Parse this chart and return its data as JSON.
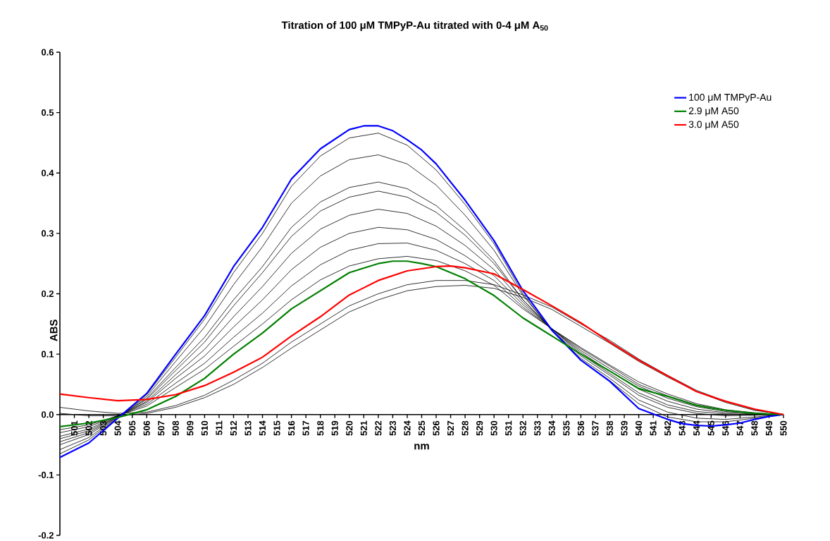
{
  "chart_data": {
    "type": "line",
    "title": "Titration of 100 μM TMPyP-Au titrated with 0-4 μM A$_{50}$",
    "xlabel": "nm",
    "ylabel": "ABS",
    "xlim": [
      500,
      550
    ],
    "xticks": [
      501,
      502,
      503,
      504,
      505,
      506,
      507,
      508,
      509,
      510,
      511,
      512,
      513,
      514,
      515,
      516,
      517,
      518,
      519,
      520,
      521,
      522,
      523,
      524,
      525,
      526,
      527,
      528,
      529,
      530,
      531,
      532,
      533,
      534,
      535,
      536,
      537,
      538,
      539,
      540,
      541,
      542,
      543,
      544,
      545,
      546,
      547,
      548,
      549,
      550
    ],
    "ylim": [
      -0.2,
      0.6
    ],
    "yticks": [
      {
        "value": -0.2,
        "label": "-0.2"
      },
      {
        "value": -0.1,
        "label": "-0.1"
      },
      {
        "value": 0,
        "label": "0.0"
      },
      {
        "value": 0.1,
        "label": "0.1"
      },
      {
        "value": 0.2,
        "label": "0.2"
      },
      {
        "value": 0.3,
        "label": "0.3"
      },
      {
        "value": 0.4,
        "label": "0.4"
      },
      {
        "value": 0.5,
        "label": "0.5"
      },
      {
        "value": 0.6,
        "label": "0.6"
      }
    ],
    "legend": "top right",
    "x": [
      500,
      502,
      504,
      506,
      508,
      510,
      512,
      514,
      516,
      518,
      520,
      522,
      524,
      526,
      528,
      530,
      532,
      534,
      536,
      538,
      540,
      542,
      544,
      546,
      548,
      550
    ],
    "series": [
      {
        "color": "#000000",
        "values": [
          -0.065,
          -0.042,
          -0.005,
          0.033,
          0.095,
          0.158,
          0.235,
          0.3,
          0.378,
          0.428,
          0.458,
          0.466,
          0.446,
          0.405,
          0.348,
          0.283,
          0.2,
          0.138,
          0.09,
          0.056,
          0.018,
          -0.004,
          -0.012,
          -0.012,
          -0.006,
          0
        ]
      },
      {
        "color": "#000000",
        "values": [
          -0.058,
          -0.038,
          -0.004,
          0.03,
          0.088,
          0.145,
          0.215,
          0.278,
          0.35,
          0.395,
          0.422,
          0.43,
          0.415,
          0.38,
          0.33,
          0.272,
          0.197,
          0.14,
          0.093,
          0.06,
          0.024,
          0.004,
          -0.006,
          -0.008,
          -0.004,
          0
        ]
      },
      {
        "color": "#000000",
        "values": [
          -0.05,
          -0.033,
          -0.004,
          0.027,
          0.078,
          0.128,
          0.19,
          0.245,
          0.31,
          0.352,
          0.376,
          0.385,
          0.374,
          0.346,
          0.305,
          0.255,
          0.19,
          0.14,
          0.097,
          0.065,
          0.032,
          0.012,
          0.002,
          -0.002,
          -0.001,
          0
        ]
      },
      {
        "color": "#000000",
        "values": [
          -0.045,
          -0.03,
          -0.003,
          0.025,
          0.073,
          0.12,
          0.18,
          0.235,
          0.295,
          0.337,
          0.36,
          0.37,
          0.36,
          0.335,
          0.297,
          0.25,
          0.19,
          0.142,
          0.1,
          0.068,
          0.036,
          0.016,
          0.005,
          0.001,
          0,
          0
        ]
      },
      {
        "color": "#000000",
        "values": [
          -0.04,
          -0.027,
          -0.003,
          0.022,
          0.066,
          0.108,
          0.162,
          0.212,
          0.267,
          0.307,
          0.33,
          0.34,
          0.333,
          0.312,
          0.28,
          0.24,
          0.186,
          0.142,
          0.103,
          0.072,
          0.042,
          0.022,
          0.009,
          0.003,
          0.001,
          0
        ]
      },
      {
        "color": "#000000",
        "values": [
          -0.036,
          -0.024,
          -0.002,
          0.02,
          0.06,
          0.097,
          0.145,
          0.19,
          0.24,
          0.277,
          0.3,
          0.31,
          0.306,
          0.29,
          0.263,
          0.23,
          0.182,
          0.142,
          0.106,
          0.076,
          0.047,
          0.027,
          0.013,
          0.005,
          0.002,
          0
        ]
      },
      {
        "color": "#000000",
        "values": [
          -0.03,
          -0.02,
          -0.002,
          0.017,
          0.052,
          0.085,
          0.128,
          0.168,
          0.213,
          0.248,
          0.272,
          0.283,
          0.284,
          0.272,
          0.25,
          0.222,
          0.178,
          0.142,
          0.109,
          0.08,
          0.05,
          0.031,
          0.016,
          0.007,
          0.002,
          0
        ]
      },
      {
        "color": "#000000",
        "values": [
          -0.025,
          -0.017,
          -0.002,
          0.014,
          0.045,
          0.075,
          0.113,
          0.15,
          0.19,
          0.223,
          0.246,
          0.258,
          0.262,
          0.255,
          0.238,
          0.214,
          0.175,
          0.142,
          0.111,
          0.082,
          0.054,
          0.034,
          0.018,
          0.008,
          0.003,
          0
        ]
      },
      {
        "color": "#000000",
        "values": [
          0.012,
          0.006,
          0.002,
          0.004,
          0.015,
          0.032,
          0.057,
          0.085,
          0.12,
          0.15,
          0.18,
          0.2,
          0.215,
          0.222,
          0.222,
          0.215,
          0.198,
          0.178,
          0.15,
          0.123,
          0.092,
          0.065,
          0.04,
          0.022,
          0.008,
          0
        ]
      },
      {
        "color": "#000000",
        "values": [
          0.002,
          -0.002,
          -0.002,
          0.002,
          0.012,
          0.028,
          0.05,
          0.078,
          0.11,
          0.14,
          0.17,
          0.19,
          0.205,
          0.212,
          0.214,
          0.209,
          0.194,
          0.174,
          0.146,
          0.118,
          0.088,
          0.062,
          0.038,
          0.02,
          0.007,
          0
        ]
      },
      {
        "name": "100 μM TMPyP-Au",
        "color": "#0000ff",
        "x": [
          500,
          502,
          504,
          506,
          508,
          510,
          512,
          514,
          516,
          518,
          520,
          521,
          522,
          523,
          524,
          525,
          526,
          528,
          530,
          532,
          534,
          536,
          538,
          540,
          542,
          543,
          544,
          545,
          546,
          547,
          548,
          549,
          550
        ],
        "values": [
          -0.071,
          -0.047,
          -0.006,
          0.035,
          0.1,
          0.164,
          0.245,
          0.31,
          0.39,
          0.44,
          0.472,
          0.478,
          0.478,
          0.47,
          0.455,
          0.438,
          0.415,
          0.355,
          0.288,
          0.205,
          0.14,
          0.09,
          0.055,
          0.01,
          -0.008,
          -0.015,
          -0.018,
          -0.019,
          -0.017,
          -0.014,
          -0.008,
          -0.003,
          0
        ]
      },
      {
        "name": "2.9 μM A50",
        "color": "#008000",
        "x": [
          500,
          502,
          504,
          506,
          508,
          510,
          512,
          514,
          516,
          518,
          520,
          522,
          523,
          524,
          525,
          526,
          528,
          530,
          532,
          534,
          536,
          538,
          540,
          542,
          544,
          546,
          548,
          550
        ],
        "values": [
          -0.02,
          -0.014,
          -0.005,
          0.008,
          0.03,
          0.06,
          0.1,
          0.135,
          0.175,
          0.205,
          0.235,
          0.25,
          0.254,
          0.254,
          0.25,
          0.245,
          0.225,
          0.197,
          0.16,
          0.13,
          0.1,
          0.072,
          0.043,
          0.03,
          0.015,
          0.007,
          0.002,
          0
        ]
      },
      {
        "name": "3.0 μM A50",
        "color": "#ff0000",
        "x": [
          500,
          502,
          504,
          506,
          508,
          510,
          512,
          514,
          516,
          518,
          520,
          522,
          524,
          526,
          527,
          528,
          530,
          532,
          534,
          536,
          538,
          540,
          542,
          544,
          546,
          548,
          550
        ],
        "values": [
          0.034,
          0.028,
          0.023,
          0.025,
          0.033,
          0.048,
          0.07,
          0.095,
          0.13,
          0.162,
          0.198,
          0.222,
          0.238,
          0.245,
          0.246,
          0.243,
          0.233,
          0.207,
          0.18,
          0.152,
          0.12,
          0.09,
          0.064,
          0.038,
          0.022,
          0.009,
          0
        ]
      }
    ]
  }
}
